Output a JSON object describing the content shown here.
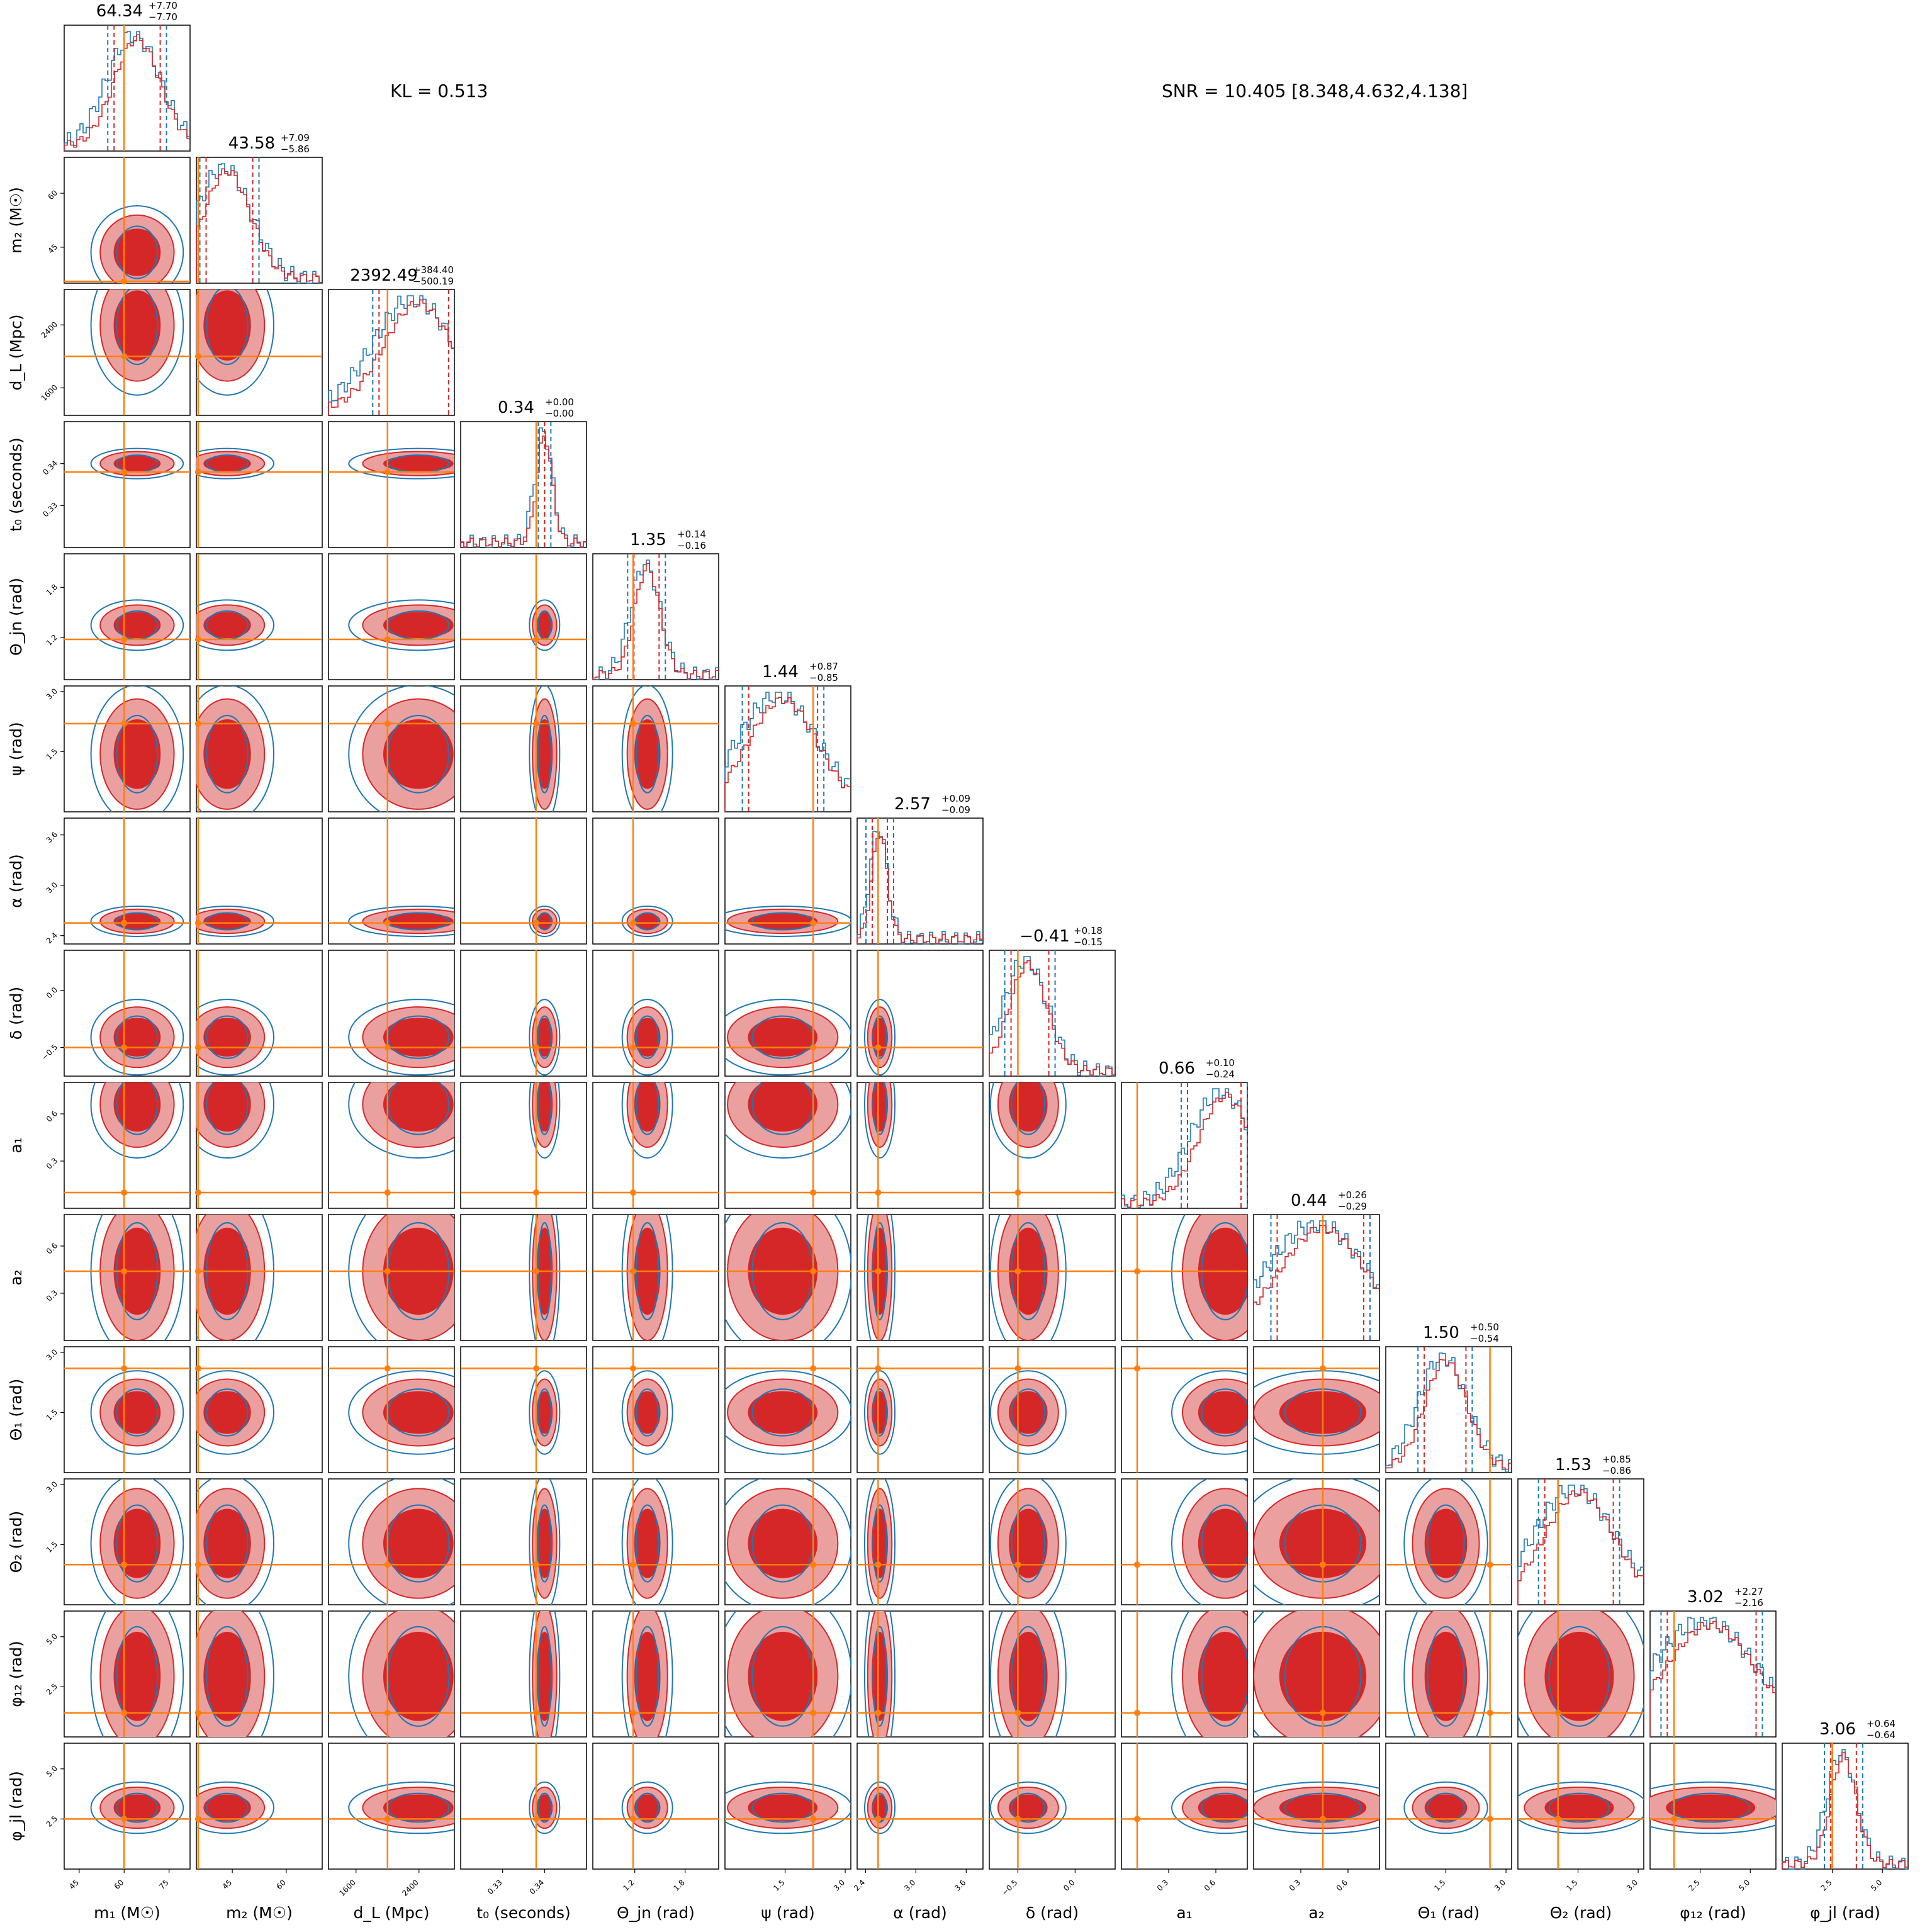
{
  "header": {
    "kl_text": "KL = 0.513",
    "snr_text": "SNR = 10.405 [8.348,4.632,4.138]"
  },
  "colors": {
    "posterior_a": "#d62728",
    "posterior_b": "#1f77b4",
    "truth": "#ff7f0e"
  },
  "chart_data": {
    "type": "corner",
    "parameters": [
      {
        "key": "m1",
        "label": "m₁ (M☉)",
        "center": 64.34,
        "plus": 7.7,
        "minus": 7.7,
        "truth": 60,
        "range": [
          40,
          82
        ],
        "ticks": [
          "45",
          "60",
          "75"
        ],
        "tick_values": [
          45,
          60,
          75
        ],
        "title": "64.34",
        "title_plus": "+7.70",
        "title_minus": "−7.70"
      },
      {
        "key": "m2",
        "label": "m₂ (M☉)",
        "center": 43.58,
        "plus": 7.09,
        "minus": 5.86,
        "truth": 35.5,
        "range": [
          35,
          70
        ],
        "ticks": [
          "45",
          "60"
        ],
        "tick_values": [
          45,
          60
        ],
        "title": "43.58",
        "title_plus": "+7.09",
        "title_minus": "−5.86"
      },
      {
        "key": "dL",
        "label": "d_L (Mpc)",
        "center": 2392.49,
        "plus": 384.4,
        "minus": 500.19,
        "truth": 2000,
        "range": [
          1250,
          2850
        ],
        "ticks": [
          "1600",
          "2400"
        ],
        "tick_values": [
          1600,
          2400
        ],
        "title": "2392.49",
        "title_plus": "+384.40",
        "title_minus": "−500.19"
      },
      {
        "key": "t0",
        "label": "t₀ (seconds)",
        "center": 0.34,
        "plus": 0.0,
        "minus": 0.0,
        "truth": 0.338,
        "range": [
          0.32,
          0.35
        ],
        "ticks": [
          "0.33",
          "0.34"
        ],
        "tick_values": [
          0.33,
          0.34
        ],
        "title": "0.34",
        "title_plus": "+0.00",
        "title_minus": "−0.00"
      },
      {
        "key": "theta_jn",
        "label": "Θ_jn (rad)",
        "center": 1.35,
        "plus": 0.14,
        "minus": 0.16,
        "truth": 1.18,
        "range": [
          0.7,
          2.2
        ],
        "ticks": [
          "1.2",
          "1.8"
        ],
        "tick_values": [
          1.2,
          1.8
        ],
        "title": "1.35",
        "title_plus": "+0.14",
        "title_minus": "−0.16"
      },
      {
        "key": "psi",
        "label": "ψ (rad)",
        "center": 1.44,
        "plus": 0.87,
        "minus": 0.85,
        "truth": 2.2,
        "range": [
          0,
          3.14
        ],
        "ticks": [
          "1.5",
          "3.0"
        ],
        "tick_values": [
          1.5,
          3.0
        ],
        "title": "1.44",
        "title_plus": "+0.87",
        "title_minus": "−0.85"
      },
      {
        "key": "alpha",
        "label": "α (rad)",
        "center": 2.57,
        "plus": 0.09,
        "minus": 0.09,
        "truth": 2.55,
        "range": [
          2.3,
          3.8
        ],
        "ticks": [
          "2.4",
          "3.0",
          "3.6"
        ],
        "tick_values": [
          2.4,
          3.0,
          3.6
        ],
        "title": "2.57",
        "title_plus": "+0.09",
        "title_minus": "−0.09"
      },
      {
        "key": "delta",
        "label": "δ (rad)",
        "center": -0.41,
        "plus": 0.18,
        "minus": 0.15,
        "truth": -0.5,
        "range": [
          -0.75,
          0.35
        ],
        "ticks": [
          "−0.5",
          "0.0"
        ],
        "tick_values": [
          -0.5,
          0.0
        ],
        "title": "−0.41",
        "title_plus": "+0.18",
        "title_minus": "−0.15"
      },
      {
        "key": "a1",
        "label": "a₁",
        "center": 0.66,
        "plus": 0.1,
        "minus": 0.24,
        "truth": 0.1,
        "range": [
          0,
          0.8
        ],
        "ticks": [
          "0.3",
          "0.6"
        ],
        "tick_values": [
          0.3,
          0.6
        ],
        "title": "0.66",
        "title_plus": "+0.10",
        "title_minus": "−0.24"
      },
      {
        "key": "a2",
        "label": "a₂",
        "center": 0.44,
        "plus": 0.26,
        "minus": 0.29,
        "truth": 0.44,
        "range": [
          0,
          0.8
        ],
        "ticks": [
          "0.3",
          "0.6"
        ],
        "tick_values": [
          0.3,
          0.6
        ],
        "title": "0.44",
        "title_plus": "+0.26",
        "title_minus": "−0.29"
      },
      {
        "key": "theta1",
        "label": "Θ₁ (rad)",
        "center": 1.5,
        "plus": 0.5,
        "minus": 0.54,
        "truth": 2.6,
        "range": [
          0,
          3.14
        ],
        "ticks": [
          "1.5",
          "3.0"
        ],
        "tick_values": [
          1.5,
          3.0
        ],
        "title": "1.50",
        "title_plus": "+0.50",
        "title_minus": "−0.54"
      },
      {
        "key": "theta2",
        "label": "Θ₂ (rad)",
        "center": 1.53,
        "plus": 0.85,
        "minus": 0.86,
        "truth": 1.0,
        "range": [
          0,
          3.14
        ],
        "ticks": [
          "1.5",
          "3.0"
        ],
        "tick_values": [
          1.5,
          3.0
        ],
        "title": "1.53",
        "title_plus": "+0.85",
        "title_minus": "−0.86"
      },
      {
        "key": "phi12",
        "label": "φ₁₂ (rad)",
        "center": 3.02,
        "plus": 2.27,
        "minus": 2.16,
        "truth": 1.2,
        "range": [
          0,
          6.28
        ],
        "ticks": [
          "2.5",
          "5.0"
        ],
        "tick_values": [
          2.5,
          5.0
        ],
        "title": "3.02",
        "title_plus": "+2.27",
        "title_minus": "−2.16"
      },
      {
        "key": "phijl",
        "label": "φ_jl (rad)",
        "center": 3.06,
        "plus": 0.64,
        "minus": 0.64,
        "truth": 2.5,
        "range": [
          0,
          6.28
        ],
        "ticks": [
          "2.5",
          "5.0"
        ],
        "tick_values": [
          2.5,
          5.0
        ],
        "title": "3.06",
        "title_plus": "+0.64",
        "title_minus": "−0.64"
      }
    ]
  }
}
